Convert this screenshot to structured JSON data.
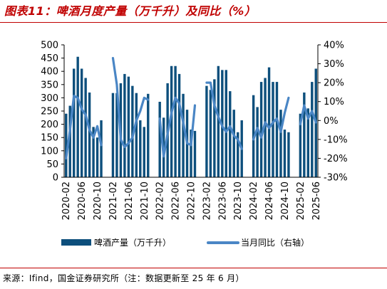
{
  "title": "图表11：啤酒月度产量（万千升）及同比（%）",
  "source": "来源：Ifind，国金证券研究所（注：数据更新至 25 年 6 月）",
  "colors": {
    "bar": "#0d4f7c",
    "line": "#4a86c5",
    "title": "#c00000"
  },
  "chart_data": {
    "type": "bar+line",
    "title": "",
    "xlabel": "",
    "ylabel": "",
    "ylim_left": [
      0,
      500
    ],
    "yticks_left": [
      "500",
      "450",
      "400",
      "350",
      "300",
      "250",
      "200",
      "150",
      "100",
      "50",
      "0"
    ],
    "ylim_right": [
      -30,
      40
    ],
    "yticks_right": [
      "40%",
      "30%",
      "20%",
      "10%",
      "0%",
      "-10%",
      "-20%",
      "-30%"
    ],
    "x_tick_labels": [
      "2020-02",
      "2020-06",
      "2020-10",
      "2021-02",
      "2021-06",
      "2021-10",
      "2022-02",
      "2022-06",
      "2022-10",
      "2023-02",
      "2023-06",
      "2023-10",
      "2024-02",
      "2024-06",
      "2024-10",
      "2025-02",
      "2025-06"
    ],
    "legend": {
      "placement": "bottom",
      "bar_label": "啤酒产量（万千升）",
      "line_label": "当月同比（右轴）"
    },
    "series": [
      {
        "name": "啤酒产量（万千升）",
        "axis": "left",
        "type": "bar",
        "values": [
          {
            "x": "2020-02",
            "y": 240
          },
          {
            "x": "2020-03",
            "y": 270
          },
          {
            "x": "2020-04",
            "y": 410
          },
          {
            "x": "2020-05",
            "y": 455
          },
          {
            "x": "2020-06",
            "y": 410
          },
          {
            "x": "2020-07",
            "y": 375
          },
          {
            "x": "2020-08",
            "y": 320
          },
          {
            "x": "2020-09",
            "y": 190
          },
          {
            "x": "2020-10",
            "y": 150
          },
          {
            "x": "2020-11",
            "y": 215
          },
          {
            "x": "2021-02",
            "y": 318
          },
          {
            "x": "2021-03",
            "y": 318
          },
          {
            "x": "2021-04",
            "y": 355
          },
          {
            "x": "2021-05",
            "y": 390
          },
          {
            "x": "2021-06",
            "y": 380
          },
          {
            "x": "2021-07",
            "y": 345
          },
          {
            "x": "2021-08",
            "y": 318
          },
          {
            "x": "2021-09",
            "y": 215
          },
          {
            "x": "2021-10",
            "y": 190
          },
          {
            "x": "2021-11",
            "y": 315
          },
          {
            "x": "2022-02",
            "y": 285
          },
          {
            "x": "2022-03",
            "y": 225
          },
          {
            "x": "2022-04",
            "y": 355
          },
          {
            "x": "2022-05",
            "y": 420
          },
          {
            "x": "2022-06",
            "y": 420
          },
          {
            "x": "2022-07",
            "y": 390
          },
          {
            "x": "2022-08",
            "y": 315
          },
          {
            "x": "2022-09",
            "y": 255
          },
          {
            "x": "2022-10",
            "y": 180
          },
          {
            "x": "2022-11",
            "y": 175
          },
          {
            "x": "2023-02",
            "y": 345
          },
          {
            "x": "2023-03",
            "y": 330
          },
          {
            "x": "2023-04",
            "y": 370
          },
          {
            "x": "2023-05",
            "y": 420
          },
          {
            "x": "2023-06",
            "y": 405
          },
          {
            "x": "2023-07",
            "y": 405
          },
          {
            "x": "2023-08",
            "y": 325
          },
          {
            "x": "2023-09",
            "y": 255
          },
          {
            "x": "2023-10",
            "y": 170
          },
          {
            "x": "2023-11",
            "y": 215
          },
          {
            "x": "2024-02",
            "y": 310
          },
          {
            "x": "2024-03",
            "y": 265
          },
          {
            "x": "2024-04",
            "y": 360
          },
          {
            "x": "2024-05",
            "y": 375
          },
          {
            "x": "2024-06",
            "y": 415
          },
          {
            "x": "2024-07",
            "y": 360
          },
          {
            "x": "2024-08",
            "y": 360
          },
          {
            "x": "2024-09",
            "y": 255
          },
          {
            "x": "2024-10",
            "y": 180
          },
          {
            "x": "2024-11",
            "y": 170
          },
          {
            "x": "2025-02",
            "y": 240
          },
          {
            "x": "2025-03",
            "y": 320
          },
          {
            "x": "2025-04",
            "y": 260
          },
          {
            "x": "2025-05",
            "y": 360
          },
          {
            "x": "2025-06",
            "y": 410
          }
        ]
      },
      {
        "name": "当月同比（右轴）",
        "axis": "right",
        "type": "line",
        "values": [
          {
            "x": "2020-02",
            "y": -20
          },
          {
            "x": "2020-03",
            "y": -5
          },
          {
            "x": "2020-04",
            "y": 13
          },
          {
            "x": "2020-05",
            "y": 12
          },
          {
            "x": "2020-06",
            "y": 6
          },
          {
            "x": "2020-07",
            "y": 3
          },
          {
            "x": "2020-08",
            "y": -5
          },
          {
            "x": "2020-09",
            "y": -9
          },
          {
            "x": "2020-10",
            "y": -3
          },
          {
            "x": "2020-11",
            "y": -13
          },
          {
            "x": "2021-02",
            "y": 33
          },
          {
            "x": "2021-03",
            "y": 19
          },
          {
            "x": "2021-04",
            "y": -10
          },
          {
            "x": "2021-05",
            "y": -14
          },
          {
            "x": "2021-06",
            "y": -12
          },
          {
            "x": "2021-07",
            "y": -9
          },
          {
            "x": "2021-08",
            "y": 0
          },
          {
            "x": "2021-09",
            "y": 5
          },
          {
            "x": "2021-10",
            "y": 12
          },
          {
            "x": "2021-11",
            "y": 11
          },
          {
            "x": "2022-02",
            "y": 1
          },
          {
            "x": "2022-03",
            "y": -19
          },
          {
            "x": "2022-04",
            "y": -7
          },
          {
            "x": "2022-05",
            "y": 4
          },
          {
            "x": "2022-06",
            "y": 12
          },
          {
            "x": "2022-07",
            "y": 9
          },
          {
            "x": "2022-08",
            "y": -1
          },
          {
            "x": "2022-09",
            "y": -12
          },
          {
            "x": "2022-10",
            "y": -13
          },
          {
            "x": "2022-11",
            "y": 8
          },
          {
            "x": "2023-02",
            "y": 20
          },
          {
            "x": "2023-03",
            "y": 20
          },
          {
            "x": "2023-04",
            "y": 8
          },
          {
            "x": "2023-05",
            "y": 2
          },
          {
            "x": "2023-06",
            "y": -3
          },
          {
            "x": "2023-07",
            "y": -6
          },
          {
            "x": "2023-08",
            "y": -3
          },
          {
            "x": "2023-09",
            "y": -8
          },
          {
            "x": "2023-10",
            "y": -10
          },
          {
            "x": "2023-11",
            "y": -15
          },
          {
            "x": "2024-02",
            "y": -10
          },
          {
            "x": "2024-03",
            "y": -4
          },
          {
            "x": "2024-04",
            "y": -9
          },
          {
            "x": "2024-05",
            "y": -1
          },
          {
            "x": "2024-06",
            "y": -4
          },
          {
            "x": "2024-07",
            "y": -1
          },
          {
            "x": "2024-08",
            "y": 1
          },
          {
            "x": "2024-09",
            "y": -6
          },
          {
            "x": "2024-10",
            "y": 4
          },
          {
            "x": "2024-11",
            "y": 12
          },
          {
            "x": "2025-02",
            "y": -2
          },
          {
            "x": "2025-03",
            "y": 8
          },
          {
            "x": "2025-04",
            "y": 1
          },
          {
            "x": "2025-05",
            "y": 5
          },
          {
            "x": "2025-06",
            "y": -1
          }
        ]
      }
    ]
  }
}
